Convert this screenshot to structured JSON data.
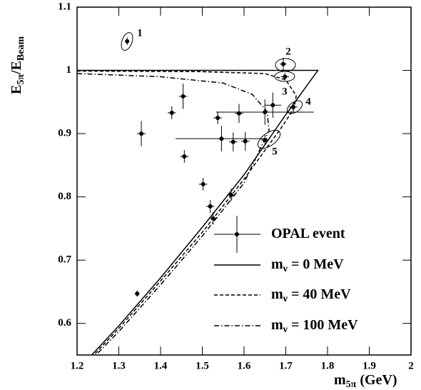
{
  "chart_data": {
    "type": "scatter",
    "xlabel": {
      "main": "m",
      "sub": "5π",
      "unit": " (GeV)"
    },
    "ylabel": {
      "main": "E",
      "sub": "5π",
      "main2": "/E",
      "sub2": "Beam"
    },
    "xlim": [
      1.2,
      2.0
    ],
    "xticks": [
      1.2,
      1.3,
      1.4,
      1.5,
      1.6,
      1.7,
      1.8,
      1.9,
      2
    ],
    "ylim": [
      0.55,
      1.1
    ],
    "yticks": [
      0.6,
      0.7,
      0.8,
      0.9,
      1,
      1.1
    ],
    "series": [
      {
        "name": "OPAL event",
        "type": "scatter",
        "color": "#000000",
        "x": [
          1.32,
          1.694,
          1.698,
          1.718,
          1.65,
          1.669,
          1.65,
          1.588,
          1.537,
          1.427,
          1.454,
          1.354,
          1.546,
          1.574,
          1.603,
          1.457,
          1.502,
          1.519,
          1.526,
          1.569,
          1.344
        ],
        "values": [
          1.046,
          1.01,
          0.99,
          0.942,
          0.89,
          0.945,
          0.934,
          0.932,
          0.925,
          0.933,
          0.959,
          0.9,
          0.892,
          0.887,
          0.888,
          0.864,
          0.82,
          0.785,
          0.766,
          0.803,
          0.647
        ],
        "xerr": [
          0.005,
          0.008,
          0.01,
          0.01,
          0.01,
          0.02,
          0.117,
          0.01,
          0.01,
          0.01,
          0.01,
          0.01,
          0.11,
          0.01,
          0.01,
          0.01,
          0.01,
          0.01,
          0.01,
          0.01,
          0.005
        ],
        "yerr": [
          0.006,
          0.01,
          0.006,
          0.008,
          0.008,
          0.02,
          0.02,
          0.015,
          0.01,
          0.01,
          0.02,
          0.02,
          0.02,
          0.015,
          0.015,
          0.01,
          0.01,
          0.01,
          0.01,
          0.01,
          0.005
        ]
      },
      {
        "name": "m",
        "sub": "ν",
        "value_text": " = 0 MeV",
        "type": "line",
        "dash": "solid",
        "color": "#000000",
        "x": [
          1.2,
          1.777,
          1.7,
          1.6,
          1.5,
          1.4,
          1.3,
          1.235
        ],
        "values": [
          1.0,
          1.0,
          0.93,
          0.835,
          0.752,
          0.672,
          0.596,
          0.55
        ]
      },
      {
        "name": "m",
        "sub": "ν",
        "value_text": " = 40 MeV",
        "type": "line",
        "dash": "dashed",
        "color": "#000000",
        "x": [
          1.2,
          1.5,
          1.65,
          1.7,
          1.725,
          1.72,
          1.69,
          1.6,
          1.5,
          1.4,
          1.3,
          1.24
        ],
        "values": [
          0.999,
          0.998,
          0.995,
          0.985,
          0.96,
          0.94,
          0.91,
          0.828,
          0.744,
          0.667,
          0.592,
          0.55
        ]
      },
      {
        "name": "m",
        "sub": "ν",
        "value_text": " = 100 MeV",
        "type": "line",
        "dash": "dashdot",
        "color": "#000000",
        "x": [
          1.2,
          1.4,
          1.55,
          1.62,
          1.655,
          1.66,
          1.645,
          1.6,
          1.5,
          1.4,
          1.3,
          1.245
        ],
        "values": [
          0.995,
          0.99,
          0.98,
          0.962,
          0.935,
          0.905,
          0.885,
          0.822,
          0.738,
          0.661,
          0.587,
          0.55
        ]
      }
    ],
    "annotations": [
      "1",
      "2",
      "3",
      "4",
      "5"
    ]
  }
}
